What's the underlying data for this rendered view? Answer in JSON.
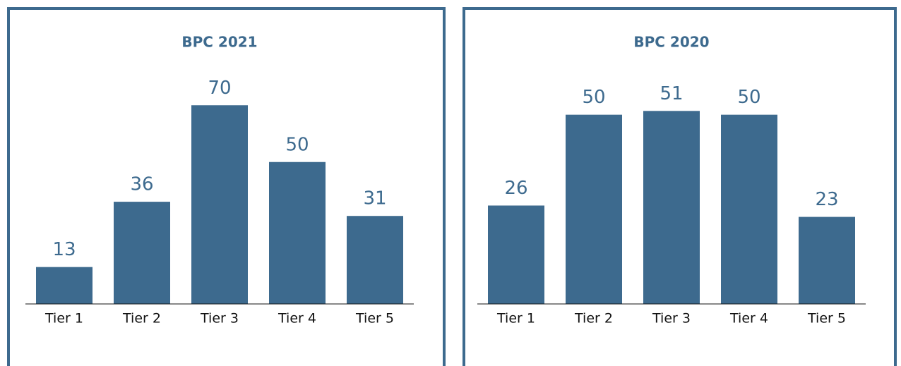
{
  "chart_data": [
    {
      "type": "bar",
      "title": "BPC 2021",
      "categories": [
        "Tier 1",
        "Tier 2",
        "Tier 3",
        "Tier 4",
        "Tier 5"
      ],
      "values": [
        13,
        36,
        70,
        50,
        31
      ],
      "color": "#3d6a8e",
      "ylim": [
        0,
        80
      ]
    },
    {
      "type": "bar",
      "title": "BPC 2020",
      "categories": [
        "Tier 1",
        "Tier 2",
        "Tier 3",
        "Tier 4",
        "Tier 5"
      ],
      "values": [
        26,
        50,
        51,
        50,
        23
      ],
      "color": "#3d6a8e",
      "ylim": [
        0,
        60
      ]
    }
  ]
}
